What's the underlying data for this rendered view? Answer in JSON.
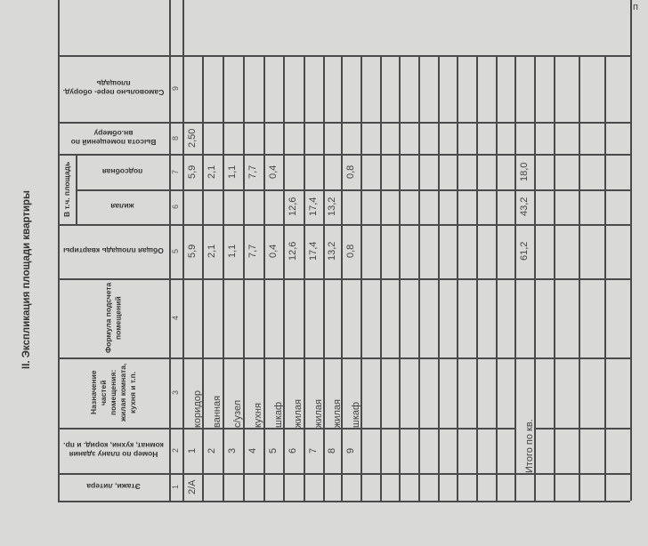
{
  "document": {
    "heading": "II. Экспликация площади квартиры",
    "corner_text": "п",
    "headers": {
      "col1": "Этажи, литера",
      "col2": "Номер по плану здания комнат, кухни, корид. и пр.",
      "col3": "Назначение частей помещения: жилая комната, кухня и т.п.",
      "col4": "Формула подсчета помещений",
      "col5": "Общая площадь квартиры",
      "group_6_7": "В т.ч. площадь",
      "col6": "жилая",
      "col7": "подсобная",
      "col8": "Высота помещений по вн.обмеру",
      "col9": "Самовольно пере- оборуд. площадь"
    },
    "column_numbers": [
      "1",
      "2",
      "3",
      "4",
      "5",
      "6",
      "7",
      "8",
      "9"
    ],
    "rows": [
      {
        "floor": "2/А",
        "number": "1",
        "purpose": "коридор",
        "formula": "",
        "total": "5,9",
        "living": "",
        "auxiliary": "5,9",
        "height": "2,50",
        "unauthorized": ""
      },
      {
        "floor": "",
        "number": "2",
        "purpose": "ванная",
        "formula": "",
        "total": "2,1",
        "living": "",
        "auxiliary": "2,1",
        "height": "",
        "unauthorized": ""
      },
      {
        "floor": "",
        "number": "3",
        "purpose": "с/узел",
        "formula": "",
        "total": "1,1",
        "living": "",
        "auxiliary": "1,1",
        "height": "",
        "unauthorized": ""
      },
      {
        "floor": "",
        "number": "4",
        "purpose": "кухня",
        "formula": "",
        "total": "7,7",
        "living": "",
        "auxiliary": "7,7",
        "height": "",
        "unauthorized": ""
      },
      {
        "floor": "",
        "number": "5",
        "purpose": "шкаф",
        "formula": "",
        "total": "0,4",
        "living": "",
        "auxiliary": "0,4",
        "height": "",
        "unauthorized": ""
      },
      {
        "floor": "",
        "number": "6",
        "purpose": "жилая",
        "formula": "",
        "total": "12,6",
        "living": "12,6",
        "auxiliary": "",
        "height": "",
        "unauthorized": ""
      },
      {
        "floor": "",
        "number": "7",
        "purpose": "жилая",
        "formula": "",
        "total": "17,4",
        "living": "17,4",
        "auxiliary": "",
        "height": "",
        "unauthorized": ""
      },
      {
        "floor": "",
        "number": "8",
        "purpose": "жилая",
        "formula": "",
        "total": "13,2",
        "living": "13,2",
        "auxiliary": "",
        "height": "",
        "unauthorized": ""
      },
      {
        "floor": "",
        "number": "9",
        "purpose": "шкаф",
        "formula": "",
        "total": "0,8",
        "living": "",
        "auxiliary": "0,8",
        "height": "",
        "unauthorized": ""
      }
    ],
    "totals": {
      "label": "Итого по кв.",
      "total": "61,2",
      "living": "43,2",
      "auxiliary": "18,0"
    }
  }
}
